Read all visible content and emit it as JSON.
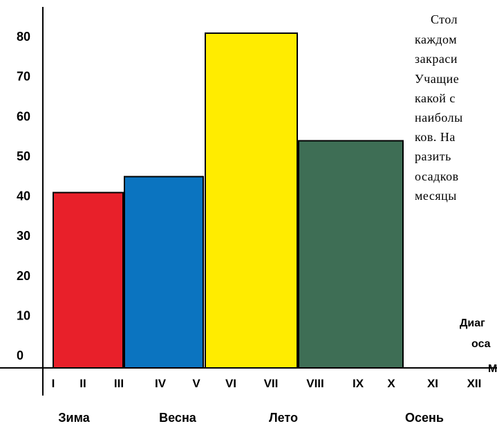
{
  "chart_data": {
    "type": "bar",
    "categories": [
      "Зима",
      "Весна",
      "Лето",
      "Осень"
    ],
    "values": [
      44,
      48,
      84,
      57
    ],
    "colors": [
      "#e8202a",
      "#0b74c0",
      "#ffec00",
      "#3e6e55"
    ],
    "months": [
      "I",
      "II",
      "III",
      "IV",
      "V",
      "VI",
      "VII",
      "VIII",
      "IX",
      "X",
      "XI",
      "XII"
    ],
    "ylim": [
      0,
      90
    ],
    "yticks": [
      0,
      10,
      20,
      30,
      40,
      50,
      60,
      70,
      80
    ]
  },
  "side_text": {
    "paragraph": [
      "Стол",
      "каждом",
      "закраси",
      "Учащие",
      "какой с",
      "наиболы",
      "ков. На",
      "разить",
      "осадков",
      "месяцы"
    ],
    "caption": [
      "Диаг",
      "оса",
      "М"
    ]
  }
}
